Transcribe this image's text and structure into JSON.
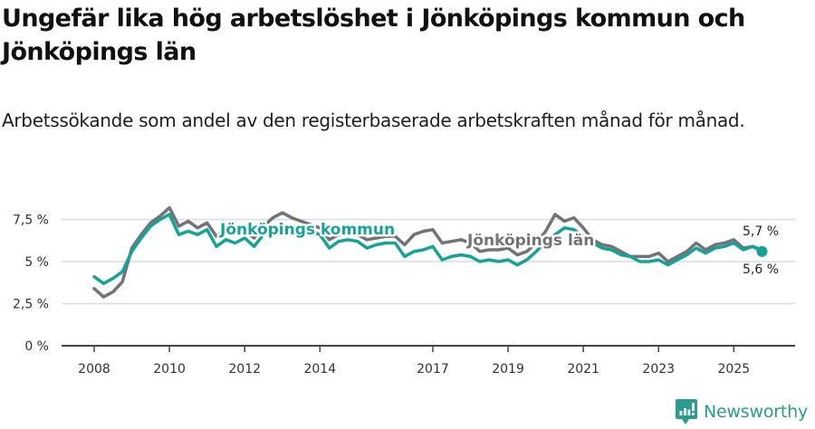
{
  "header": {
    "title": "Ungefär lika hög arbetslöshet i Jönköpings kommun och Jönköpings län",
    "subtitle": "Arbetssökande som andel av den registerbaserade arbetskraften månad för månad."
  },
  "brand": {
    "name": "Newsworthy",
    "icon": "newsworthy-logo-icon",
    "color": "#2b9c8d"
  },
  "colors": {
    "kommun": "#16a397",
    "lan": "#737277",
    "grid": "#dcdcdc",
    "axis": "#444444"
  },
  "chart_data": {
    "type": "line",
    "title": "Ungefär lika hög arbetslöshet i Jönköpings kommun och Jönköpings län",
    "subtitle": "Arbetssökande som andel av den registerbaserade arbetskraften månad för månad.",
    "xlabel": "",
    "ylabel": "",
    "ylim": [
      0,
      8.5
    ],
    "yticks": [
      0,
      2.5,
      5,
      7.5
    ],
    "ytick_labels": [
      "0 %",
      "2,5 %",
      "5 %",
      "7,5 %"
    ],
    "xticks": [
      2008,
      2010,
      2012,
      2014,
      2017,
      2019,
      2021,
      2023,
      2025
    ],
    "xtick_labels": [
      "2008",
      "2010",
      "2012",
      "2014",
      "2017",
      "2019",
      "2021",
      "2023",
      "2025"
    ],
    "grid": true,
    "legend": "inline labels",
    "x": [
      2008.0,
      2008.25,
      2008.5,
      2008.75,
      2009.0,
      2009.25,
      2009.5,
      2009.75,
      2010.0,
      2010.25,
      2010.5,
      2010.75,
      2011.0,
      2011.25,
      2011.5,
      2011.75,
      2012.0,
      2012.25,
      2012.5,
      2012.75,
      2013.0,
      2013.25,
      2013.5,
      2013.75,
      2014.0,
      2014.25,
      2014.5,
      2014.75,
      2015.0,
      2015.25,
      2015.5,
      2015.75,
      2016.0,
      2016.25,
      2016.5,
      2016.75,
      2017.0,
      2017.25,
      2017.5,
      2017.75,
      2018.0,
      2018.25,
      2018.5,
      2018.75,
      2019.0,
      2019.25,
      2019.5,
      2019.75,
      2020.0,
      2020.25,
      2020.5,
      2020.75,
      2021.0,
      2021.25,
      2021.5,
      2021.75,
      2022.0,
      2022.25,
      2022.5,
      2022.75,
      2023.0,
      2023.25,
      2023.5,
      2023.75,
      2024.0,
      2024.25,
      2024.5,
      2024.75,
      2025.0,
      2025.25,
      2025.5,
      2025.75
    ],
    "series": [
      {
        "name": "Jönköpings kommun",
        "color": "#16a397",
        "values": [
          4.1,
          3.7,
          4.0,
          4.4,
          5.6,
          6.4,
          7.1,
          7.5,
          7.8,
          6.6,
          6.8,
          6.6,
          6.9,
          5.9,
          6.3,
          6.1,
          6.4,
          5.9,
          6.6,
          7.0,
          7.2,
          7.1,
          7.0,
          6.8,
          6.6,
          5.8,
          6.2,
          6.3,
          6.2,
          5.8,
          6.0,
          6.1,
          6.1,
          5.3,
          5.6,
          5.7,
          5.9,
          5.1,
          5.3,
          5.4,
          5.3,
          5.0,
          5.1,
          5.0,
          5.1,
          4.8,
          5.1,
          5.6,
          6.2,
          6.6,
          7.0,
          6.9,
          6.5,
          6.1,
          5.8,
          5.7,
          5.4,
          5.3,
          5.0,
          5.0,
          5.1,
          4.8,
          5.1,
          5.4,
          5.8,
          5.5,
          5.8,
          5.9,
          6.1,
          5.7,
          5.9,
          5.6
        ]
      },
      {
        "name": "Jönköpings län",
        "color": "#737277",
        "values": [
          3.4,
          2.9,
          3.2,
          3.8,
          5.8,
          6.6,
          7.3,
          7.7,
          8.2,
          7.1,
          7.4,
          7.0,
          7.3,
          6.5,
          6.9,
          6.7,
          6.8,
          6.4,
          7.1,
          7.6,
          7.9,
          7.6,
          7.4,
          7.2,
          7.0,
          6.3,
          6.6,
          6.7,
          6.6,
          6.3,
          6.4,
          6.5,
          6.5,
          6.0,
          6.6,
          6.8,
          6.9,
          6.1,
          6.2,
          6.3,
          6.1,
          5.6,
          5.7,
          5.7,
          5.8,
          5.4,
          5.6,
          6.1,
          6.8,
          7.8,
          7.4,
          7.6,
          7.0,
          6.3,
          6.0,
          5.9,
          5.6,
          5.3,
          5.3,
          5.3,
          5.5,
          5.0,
          5.3,
          5.6,
          6.1,
          5.7,
          6.0,
          6.1,
          6.3,
          5.8,
          5.9,
          5.7
        ]
      }
    ],
    "annotations": [
      {
        "text": "Jönköpings kommun",
        "series": "Jönköpings kommun",
        "x": 2011.3,
        "y": 6.9
      },
      {
        "text": "Jönköpings län",
        "series": "Jönköpings län",
        "x": 2018.9,
        "y": 6.4
      },
      {
        "text": "5,7 %",
        "series": "Jönköpings län",
        "x": 2025.75,
        "y": 5.7,
        "position": "above"
      },
      {
        "text": "5,6 %",
        "series": "Jönköpings kommun",
        "x": 2025.75,
        "y": 5.6,
        "position": "below"
      }
    ]
  }
}
